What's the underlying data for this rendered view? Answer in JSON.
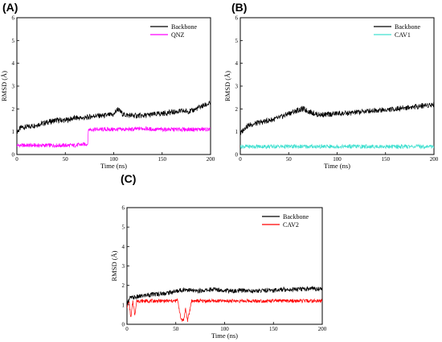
{
  "panels": [
    {
      "letter": "(A)"
    },
    {
      "letter": "(B)"
    },
    {
      "letter": "(C)"
    }
  ],
  "chart_data": [
    {
      "type": "line",
      "xlabel": "Time (ns)",
      "ylabel": "RMSD (Å)",
      "xlim": [
        0,
        200
      ],
      "ylim": [
        0,
        6
      ],
      "xticks": [
        0,
        50,
        100,
        150,
        200
      ],
      "yticks": [
        0,
        1,
        2,
        3,
        4,
        5,
        6
      ],
      "legend_position": "top-right",
      "series": [
        {
          "name": "Backbone",
          "color": "#000000",
          "x": [
            0,
            5,
            10,
            20,
            30,
            40,
            50,
            60,
            70,
            80,
            90,
            100,
            104,
            110,
            120,
            130,
            140,
            150,
            160,
            170,
            180,
            190,
            200
          ],
          "y": [
            1.0,
            1.2,
            1.2,
            1.3,
            1.4,
            1.5,
            1.5,
            1.6,
            1.6,
            1.7,
            1.7,
            1.75,
            2.0,
            1.75,
            1.7,
            1.7,
            1.75,
            1.8,
            1.85,
            1.9,
            1.9,
            2.1,
            2.25
          ]
        },
        {
          "name": "QNZ",
          "color": "#ff00ff",
          "x": [
            0,
            10,
            20,
            30,
            40,
            50,
            60,
            70,
            73,
            74,
            80,
            90,
            100,
            110,
            120,
            130,
            140,
            150,
            160,
            170,
            180,
            190,
            200
          ],
          "y": [
            0.4,
            0.4,
            0.4,
            0.4,
            0.4,
            0.4,
            0.4,
            0.45,
            0.45,
            1.1,
            1.1,
            1.1,
            1.1,
            1.1,
            1.1,
            1.15,
            1.1,
            1.1,
            1.1,
            1.1,
            1.1,
            1.1,
            1.1
          ]
        }
      ]
    },
    {
      "type": "line",
      "xlabel": "Time (ns)",
      "ylabel": "RMSD (Å)",
      "xlim": [
        0,
        200
      ],
      "ylim": [
        0,
        6
      ],
      "xticks": [
        0,
        50,
        100,
        150,
        200
      ],
      "yticks": [
        0,
        1,
        2,
        3,
        4,
        5,
        6
      ],
      "legend_position": "top-right",
      "series": [
        {
          "name": "Backbone",
          "color": "#000000",
          "x": [
            0,
            5,
            10,
            20,
            30,
            40,
            50,
            60,
            65,
            70,
            80,
            90,
            100,
            110,
            120,
            130,
            140,
            150,
            160,
            170,
            180,
            190,
            200
          ],
          "y": [
            0.9,
            1.2,
            1.3,
            1.4,
            1.5,
            1.6,
            1.8,
            1.95,
            2.0,
            1.9,
            1.75,
            1.75,
            1.8,
            1.8,
            1.85,
            1.9,
            1.95,
            1.95,
            2.0,
            2.05,
            2.1,
            2.15,
            2.2
          ]
        },
        {
          "name": "CAV1",
          "color": "#40e0d0",
          "x": [
            0,
            20,
            40,
            60,
            80,
            100,
            120,
            140,
            160,
            180,
            200
          ],
          "y": [
            0.35,
            0.35,
            0.35,
            0.35,
            0.35,
            0.35,
            0.35,
            0.35,
            0.35,
            0.35,
            0.35
          ]
        }
      ]
    },
    {
      "type": "line",
      "xlabel": "Time (ns)",
      "ylabel": "RMSD (Å)",
      "xlim": [
        0,
        200
      ],
      "ylim": [
        0,
        6
      ],
      "xticks": [
        0,
        50,
        100,
        150,
        200
      ],
      "yticks": [
        0,
        1,
        2,
        3,
        4,
        5,
        6
      ],
      "legend_position": "top-right",
      "series": [
        {
          "name": "Backbone",
          "color": "#000000",
          "x": [
            0,
            3,
            10,
            20,
            30,
            40,
            50,
            60,
            70,
            80,
            90,
            100,
            110,
            120,
            130,
            140,
            150,
            160,
            170,
            180,
            190,
            200
          ],
          "y": [
            1.1,
            1.35,
            1.4,
            1.5,
            1.55,
            1.6,
            1.7,
            1.8,
            1.7,
            1.75,
            1.8,
            1.75,
            1.7,
            1.75,
            1.7,
            1.75,
            1.75,
            1.8,
            1.8,
            1.8,
            1.85,
            1.8
          ]
        },
        {
          "name": "CAV2",
          "color": "#ff0000",
          "x": [
            0,
            2,
            4,
            6,
            8,
            10,
            20,
            30,
            40,
            50,
            52,
            55,
            58,
            60,
            62,
            64,
            66,
            70,
            80,
            90,
            100,
            110,
            120,
            130,
            140,
            150,
            160,
            170,
            180,
            190,
            200
          ],
          "y": [
            0.9,
            1.2,
            0.3,
            1.2,
            0.5,
            1.2,
            1.2,
            1.2,
            1.2,
            1.2,
            1.25,
            0.3,
            0.2,
            0.8,
            0.2,
            0.6,
            1.2,
            1.2,
            1.2,
            1.2,
            1.2,
            1.2,
            1.2,
            1.2,
            1.2,
            1.2,
            1.2,
            1.2,
            1.2,
            1.2,
            1.2
          ]
        }
      ]
    }
  ]
}
